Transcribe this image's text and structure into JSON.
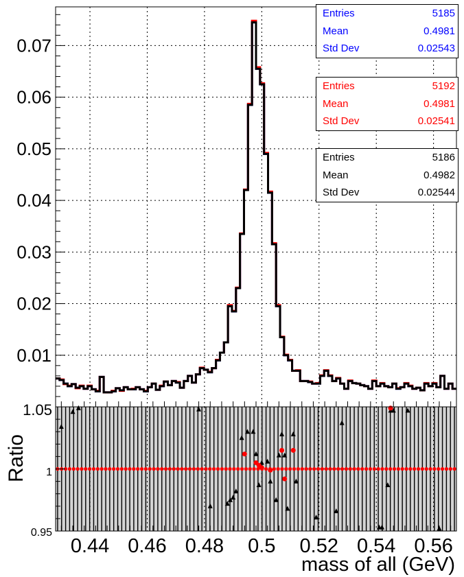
{
  "chart_data": [
    {
      "type": "histogram",
      "title": "",
      "xlabel": "",
      "ylabel": "",
      "xlim": [
        0.428,
        0.568
      ],
      "ylim": [
        0,
        0.0775
      ],
      "grid": true,
      "y_ticks": [
        "0.01",
        "0.02",
        "0.03",
        "0.04",
        "0.05",
        "0.06",
        "0.07"
      ],
      "bin_edges_start": 0.428,
      "bin_width": 0.0014,
      "series": [
        {
          "color": "#0000ff",
          "values": [
            0.0055,
            0.0052,
            0.0045,
            0.004,
            0.0044,
            0.0037,
            0.004,
            0.0035,
            0.004,
            0.0034,
            0.003,
            0.0058,
            0.0028,
            0.0028,
            0.003,
            0.0036,
            0.0032,
            0.0038,
            0.0034,
            0.0034,
            0.0038,
            0.0034,
            0.003,
            0.0038,
            0.0045,
            0.0033,
            0.004,
            0.0049,
            0.0042,
            0.005,
            0.0047,
            0.0037,
            0.005,
            0.006,
            0.0047,
            0.0063,
            0.0075,
            0.0072,
            0.0067,
            0.0075,
            0.009,
            0.0105,
            0.0125,
            0.0195,
            0.0185,
            0.023,
            0.0335,
            0.042,
            0.0585,
            0.0745,
            0.0655,
            0.0625,
            0.049,
            0.0415,
            0.0315,
            0.0195,
            0.0135,
            0.01,
            0.009,
            0.007,
            0.007,
            0.005,
            0.005,
            0.0048,
            0.0045,
            0.0045,
            0.006,
            0.007,
            0.006,
            0.005,
            0.0055,
            0.0045,
            0.0035,
            0.005,
            0.0046,
            0.0045,
            0.0042,
            0.004,
            0.0035,
            0.005,
            0.004,
            0.0045,
            0.004,
            0.0038,
            0.0045,
            0.0035,
            0.0038,
            0.0045,
            0.004,
            0.0035,
            0.0037,
            0.0032,
            0.0045,
            0.004,
            0.0045,
            0.0038,
            0.006,
            0.0035,
            0.0045,
            0.0035
          ]
        },
        {
          "color": "#ff0000",
          "values": [
            0.0055,
            0.0053,
            0.0044,
            0.0041,
            0.0044,
            0.0036,
            0.0041,
            0.0035,
            0.0041,
            0.0034,
            0.0031,
            0.0058,
            0.0028,
            0.0028,
            0.0031,
            0.0036,
            0.0031,
            0.0038,
            0.0034,
            0.0035,
            0.0038,
            0.0034,
            0.0031,
            0.0038,
            0.0045,
            0.0033,
            0.0041,
            0.0049,
            0.0042,
            0.005,
            0.0048,
            0.0037,
            0.005,
            0.006,
            0.0047,
            0.0063,
            0.0076,
            0.0072,
            0.0068,
            0.0075,
            0.0091,
            0.0105,
            0.0125,
            0.0197,
            0.0186,
            0.0231,
            0.0336,
            0.0421,
            0.0587,
            0.0748,
            0.0658,
            0.0627,
            0.0492,
            0.0417,
            0.0317,
            0.0197,
            0.0136,
            0.0101,
            0.0091,
            0.007,
            0.0071,
            0.005,
            0.005,
            0.0049,
            0.0045,
            0.0046,
            0.0061,
            0.0071,
            0.0061,
            0.005,
            0.0056,
            0.0045,
            0.0035,
            0.0051,
            0.0046,
            0.0045,
            0.0042,
            0.004,
            0.0035,
            0.0051,
            0.004,
            0.0046,
            0.004,
            0.0038,
            0.0045,
            0.0036,
            0.0038,
            0.0046,
            0.0041,
            0.0035,
            0.0037,
            0.0032,
            0.0046,
            0.004,
            0.0046,
            0.0038,
            0.006,
            0.0035,
            0.0045,
            0.0035
          ]
        },
        {
          "color": "#000000",
          "values": [
            0.0055,
            0.0052,
            0.0045,
            0.004,
            0.0044,
            0.0037,
            0.004,
            0.0035,
            0.004,
            0.0034,
            0.003,
            0.0058,
            0.0028,
            0.0028,
            0.003,
            0.0036,
            0.0032,
            0.0038,
            0.0034,
            0.0034,
            0.0038,
            0.0034,
            0.003,
            0.0038,
            0.0045,
            0.0033,
            0.004,
            0.0049,
            0.0042,
            0.005,
            0.0047,
            0.0037,
            0.005,
            0.006,
            0.0047,
            0.0063,
            0.0075,
            0.0072,
            0.0067,
            0.0075,
            0.009,
            0.0105,
            0.0125,
            0.0195,
            0.0185,
            0.023,
            0.0335,
            0.042,
            0.0585,
            0.0745,
            0.0655,
            0.0625,
            0.049,
            0.0415,
            0.0315,
            0.0195,
            0.0135,
            0.01,
            0.009,
            0.007,
            0.007,
            0.005,
            0.005,
            0.0048,
            0.0045,
            0.0045,
            0.006,
            0.007,
            0.006,
            0.005,
            0.0055,
            0.0045,
            0.0035,
            0.005,
            0.0046,
            0.0045,
            0.0042,
            0.004,
            0.0035,
            0.005,
            0.004,
            0.0045,
            0.004,
            0.0038,
            0.0045,
            0.0035,
            0.0038,
            0.0045,
            0.004,
            0.0035,
            0.0037,
            0.0032,
            0.0045,
            0.004,
            0.0045,
            0.0038,
            0.006,
            0.0035,
            0.0045,
            0.0035
          ]
        }
      ],
      "stat_boxes": [
        {
          "color": "#0000ff",
          "rows": [
            {
              "label": "Entries",
              "value": "5185"
            },
            {
              "label": "Mean",
              "value": "0.4981"
            },
            {
              "label": "Std Dev",
              "value": "0.02543"
            }
          ]
        },
        {
          "color": "#ff0000",
          "rows": [
            {
              "label": "Entries",
              "value": "5192"
            },
            {
              "label": "Mean",
              "value": "0.4981"
            },
            {
              "label": "Std Dev",
              "value": "0.02541"
            }
          ]
        },
        {
          "color": "#000000",
          "rows": [
            {
              "label": "Entries",
              "value": "5186"
            },
            {
              "label": "Mean",
              "value": "0.4982"
            },
            {
              "label": "Std Dev",
              "value": "0.02544"
            }
          ]
        }
      ]
    },
    {
      "type": "scatter",
      "title": "",
      "xlabel": "mass of all (GeV)",
      "ylabel": "Ratio",
      "xlim": [
        0.428,
        0.568
      ],
      "ylim": [
        0.95,
        1.05
      ],
      "grid": true,
      "x_ticks": [
        "0.44",
        "0.46",
        "0.48",
        "0.5",
        "0.52",
        "0.54",
        "0.56"
      ],
      "y_ticks": [
        "0.95",
        "1",
        "1.05"
      ],
      "y_tick_labels_shown": [
        "0.95",
        "1",
        "1.05"
      ],
      "series": [
        {
          "color": "#000000",
          "marker": "triangle",
          "points": [
            [
              0.43,
              1.034
            ],
            [
              0.434,
              1.046
            ],
            [
              0.436,
              1.049
            ],
            [
              0.478,
              1.048
            ],
            [
              0.482,
              0.97
            ],
            [
              0.488,
              0.972
            ],
            [
              0.489,
              0.975
            ],
            [
              0.49,
              0.977
            ],
            [
              0.491,
              0.982
            ],
            [
              0.493,
              1.025
            ],
            [
              0.495,
              1.03
            ],
            [
              0.497,
              1.03
            ],
            [
              0.498,
              1.012
            ],
            [
              0.499,
              0.987
            ],
            [
              0.5,
              1.005
            ],
            [
              0.502,
              1.006
            ],
            [
              0.503,
              0.99
            ],
            [
              0.505,
              0.975
            ],
            [
              0.506,
              1.011
            ],
            [
              0.507,
              1.028
            ],
            [
              0.508,
              1.011
            ],
            [
              0.509,
              0.968
            ],
            [
              0.511,
              1.028
            ],
            [
              0.512,
              0.99
            ],
            [
              0.519,
              0.961
            ],
            [
              0.526,
              0.966
            ],
            [
              0.528,
              1.037
            ],
            [
              0.541,
              0.953
            ],
            [
              0.542,
              0.953
            ],
            [
              0.544,
              0.987
            ],
            [
              0.545,
              1.047
            ],
            [
              0.546,
              1.047
            ],
            [
              0.551,
              1.047
            ],
            [
              0.562,
              0.952
            ]
          ]
        },
        {
          "color": "#ff0000",
          "marker": "circle",
          "points": [
            [
              0.494,
              1.012
            ],
            [
              0.498,
              1.005
            ],
            [
              0.499,
              1.003
            ],
            [
              0.5,
              1.001
            ],
            [
              0.503,
              0.999
            ],
            [
              0.507,
              1.015
            ],
            [
              0.508,
              0.992
            ],
            [
              0.511,
              1.015
            ],
            [
              0.545,
              1.049
            ]
          ]
        }
      ],
      "flat_band_value": 1.0
    }
  ]
}
